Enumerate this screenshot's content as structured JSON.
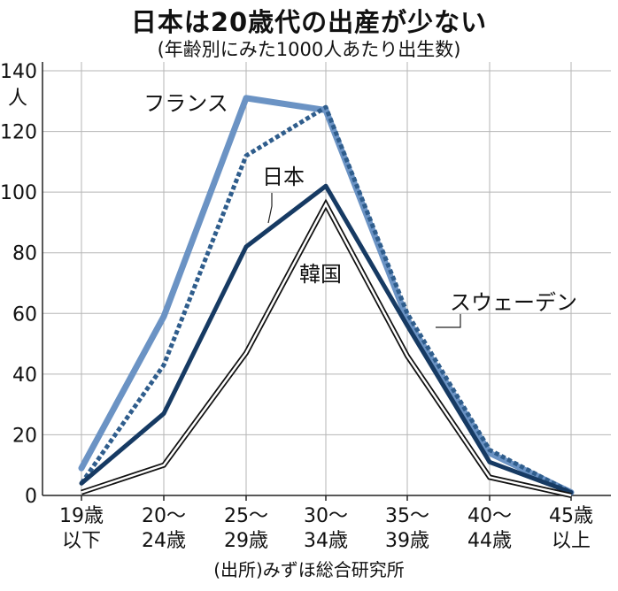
{
  "header": {
    "title": "日本は20歳代の出産が少ない",
    "subtitle": "(年齢別にみた1000人あたり出生数)"
  },
  "source": "(出所)みずほ総合研究所",
  "chart_data": {
    "type": "line",
    "title": "日本は20歳代の出産が少ない",
    "subtitle": "(年齢別にみた1000人あたり出生数)",
    "ylabel": "人",
    "ylim": [
      0,
      140
    ],
    "yticks": [
      0,
      20,
      40,
      60,
      80,
      100,
      120,
      140
    ],
    "grid": true,
    "legend": "inline labels",
    "categories": [
      [
        "19歳",
        "以下"
      ],
      [
        "20～",
        "24歳"
      ],
      [
        "25～",
        "29歳"
      ],
      [
        "30～",
        "34歳"
      ],
      [
        "35～",
        "39歳"
      ],
      [
        "40～",
        "44歳"
      ],
      [
        "45歳",
        "以上"
      ]
    ],
    "series": [
      {
        "name": "フランス",
        "values": [
          9,
          59,
          131,
          127,
          58,
          14,
          1
        ],
        "color": "#6b93c4",
        "style": "thick"
      },
      {
        "name": "スウェーデン",
        "values": [
          4,
          43,
          112,
          128,
          60,
          15,
          1
        ],
        "color": "#2f5d8c",
        "style": "dotted"
      },
      {
        "name": "日本",
        "values": [
          4,
          27,
          82,
          102,
          56,
          11,
          1
        ],
        "color": "#163a63",
        "style": "solid"
      },
      {
        "name": "韓国",
        "values": [
          1,
          10,
          47,
          96,
          46,
          6,
          0
        ],
        "color": "#111111",
        "style": "double"
      }
    ]
  }
}
